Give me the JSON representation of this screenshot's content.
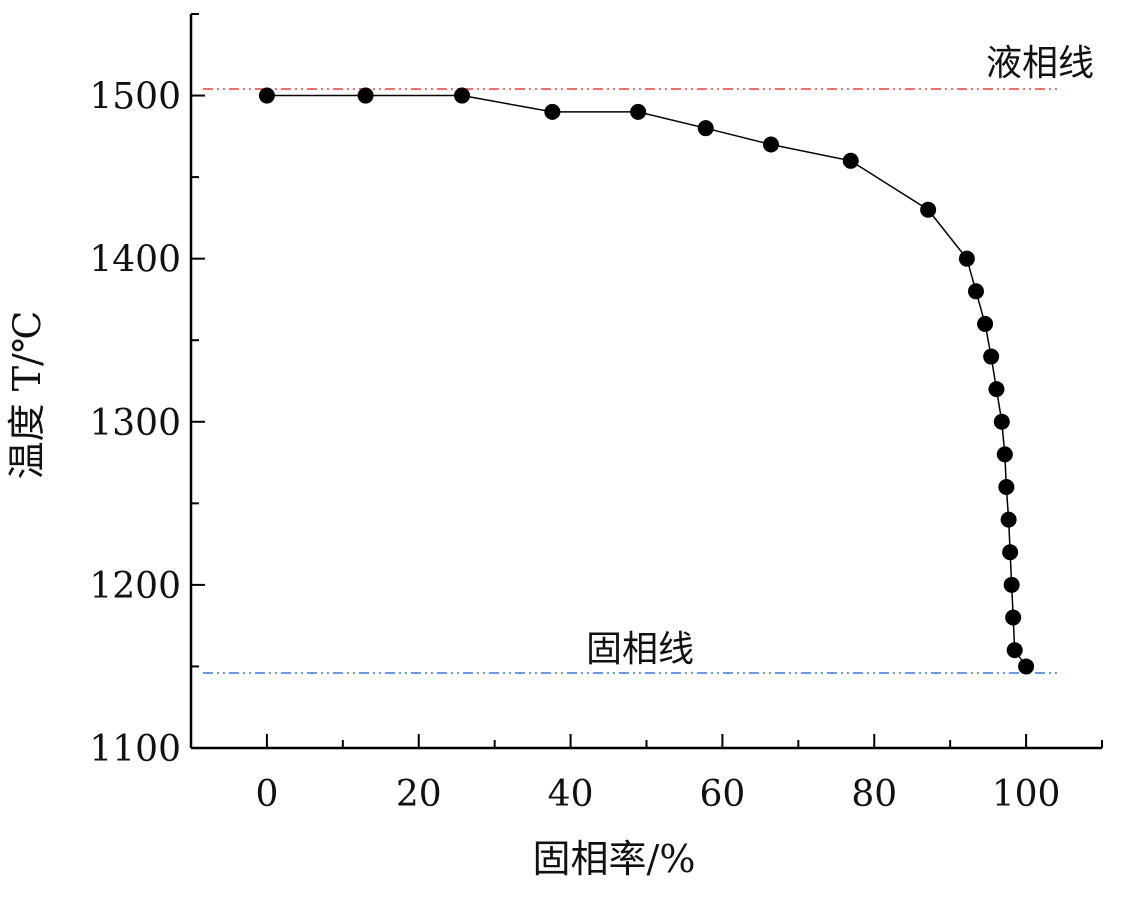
{
  "chart_data": {
    "type": "line",
    "xlabel": "固相率/%",
    "ylabel": "温度 T/℃",
    "xlim": [
      -10,
      110
    ],
    "ylim": [
      1100,
      1550
    ],
    "xticks": [
      0,
      20,
      40,
      60,
      80,
      100
    ],
    "yticks": [
      1100,
      1200,
      1300,
      1400,
      1500
    ],
    "grid": false,
    "series": [
      {
        "x": [
          0,
          13,
          25.7,
          37.6,
          48.9,
          57.8,
          66.4,
          76.9,
          87.1,
          92.2,
          93.4,
          94.6,
          95.4,
          96.1,
          96.8,
          97.2,
          97.4,
          97.7,
          97.9,
          98.1,
          98.3,
          98.5,
          100
        ],
        "y": [
          1500,
          1500,
          1500,
          1490,
          1490,
          1480,
          1470,
          1460,
          1430,
          1400,
          1380,
          1360,
          1340,
          1320,
          1300,
          1280,
          1260,
          1240,
          1220,
          1200,
          1180,
          1160,
          1150
        ],
        "color": "#000000"
      }
    ],
    "reference_lines": [
      {
        "label": "液相线",
        "y": 1504,
        "color": "#e8443a"
      },
      {
        "label": "固相线",
        "y": 1146,
        "color": "#3a78d8"
      }
    ]
  }
}
